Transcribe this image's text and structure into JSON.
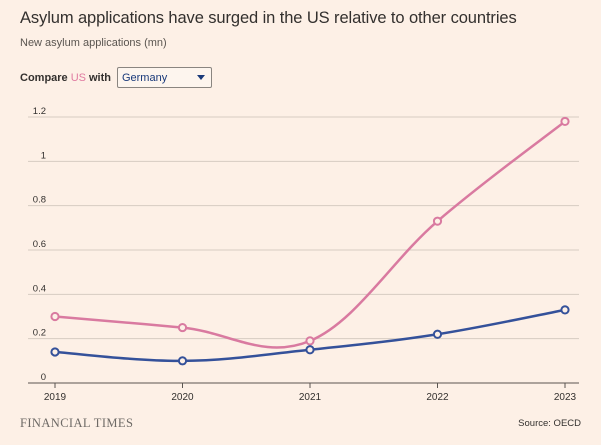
{
  "title": "Asylum applications have surged in the US relative to other countries",
  "subtitle": "New asylum applications (mn)",
  "compare": {
    "prefix": "Compare",
    "highlight": "US",
    "suffix": "with",
    "selected": "Germany"
  },
  "footer": {
    "brand": "FINANCIAL TIMES",
    "source": "Source: OECD"
  },
  "colors": {
    "background": "#fdf0e6",
    "us": "#d97aa0",
    "comparison": "#34519a",
    "grid": "#d6ccc2"
  },
  "chart_data": {
    "type": "line",
    "x": [
      2019,
      2020,
      2021,
      2022,
      2023
    ],
    "xticks": [
      "2019",
      "2020",
      "2021",
      "2022",
      "2023"
    ],
    "yticks": [
      "0",
      "0.2",
      "0.4",
      "0.6",
      "0.8",
      "1",
      "1.2"
    ],
    "ylim": [
      0,
      1.2
    ],
    "grid": true,
    "series": [
      {
        "name": "US",
        "color": "#d97aa0",
        "values": [
          0.3,
          0.25,
          0.19,
          0.73,
          1.18
        ]
      },
      {
        "name": "Germany",
        "color": "#34519a",
        "values": [
          0.14,
          0.1,
          0.15,
          0.22,
          0.33
        ]
      }
    ]
  }
}
